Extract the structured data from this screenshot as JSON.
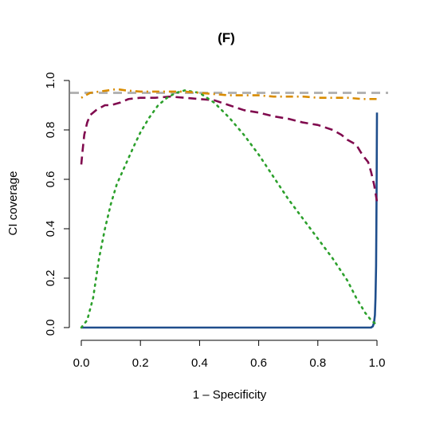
{
  "chart_data": {
    "type": "line",
    "title": "(F)",
    "xlabel": "1 – Specificity",
    "ylabel": "CI coverage",
    "xlim": [
      0,
      1
    ],
    "ylim": [
      0,
      1
    ],
    "xticks": [
      "0.0",
      "0.2",
      "0.4",
      "0.6",
      "0.8",
      "1.0"
    ],
    "yticks": [
      "0.0",
      "0.2",
      "0.4",
      "0.6",
      "0.8",
      "1.0"
    ],
    "grid": false,
    "legend": "none",
    "reference_line": {
      "y": 0.95,
      "style": "dashed",
      "color": "#b3b3b3"
    },
    "series": [
      {
        "color": "#1f4e8c",
        "style": "solid",
        "x": [
          0,
          0.1,
          0.2,
          0.3,
          0.4,
          0.5,
          0.6,
          0.7,
          0.8,
          0.9,
          0.95,
          0.98,
          0.986,
          0.99,
          0.993,
          0.995,
          0.997,
          0.998,
          0.999,
          1.0
        ],
        "y": [
          0.0,
          0.0,
          0.0,
          0.0,
          0.0,
          0.0,
          0.0,
          0.0,
          0.0,
          0.0,
          0.0,
          0.0,
          0.005,
          0.02,
          0.05,
          0.12,
          0.25,
          0.42,
          0.62,
          0.87
        ]
      },
      {
        "color": "#800a4e",
        "style": "dashed",
        "x": [
          0.0,
          0.003,
          0.01,
          0.02,
          0.03,
          0.05,
          0.08,
          0.1,
          0.13,
          0.16,
          0.2,
          0.25,
          0.3,
          0.35,
          0.4,
          0.45,
          0.5,
          0.55,
          0.6,
          0.65,
          0.7,
          0.75,
          0.8,
          0.85,
          0.88,
          0.9,
          0.93,
          0.95,
          0.97,
          0.98,
          0.99,
          1.0
        ],
        "y": [
          0.66,
          0.7,
          0.78,
          0.83,
          0.86,
          0.88,
          0.9,
          0.9,
          0.91,
          0.925,
          0.93,
          0.93,
          0.935,
          0.93,
          0.925,
          0.92,
          0.9,
          0.88,
          0.87,
          0.855,
          0.845,
          0.83,
          0.82,
          0.8,
          0.78,
          0.76,
          0.74,
          0.7,
          0.67,
          0.63,
          0.58,
          0.51
        ]
      },
      {
        "color": "#2ca02c",
        "style": "dotted",
        "x": [
          0.0,
          0.02,
          0.04,
          0.06,
          0.08,
          0.1,
          0.12,
          0.15,
          0.18,
          0.2,
          0.23,
          0.26,
          0.29,
          0.32,
          0.35,
          0.4,
          0.45,
          0.5,
          0.55,
          0.6,
          0.65,
          0.7,
          0.75,
          0.8,
          0.85,
          0.9,
          0.93,
          0.96,
          0.98,
          1.0
        ],
        "y": [
          0.0,
          0.03,
          0.12,
          0.28,
          0.4,
          0.5,
          0.58,
          0.66,
          0.74,
          0.79,
          0.85,
          0.9,
          0.93,
          0.95,
          0.96,
          0.95,
          0.91,
          0.85,
          0.78,
          0.7,
          0.61,
          0.52,
          0.44,
          0.36,
          0.28,
          0.19,
          0.12,
          0.06,
          0.03,
          0.01
        ]
      },
      {
        "color": "#d98c00",
        "style": "dotdash",
        "x": [
          0.0,
          0.03,
          0.06,
          0.09,
          0.12,
          0.15,
          0.2,
          0.25,
          0.3,
          0.35,
          0.4,
          0.45,
          0.5,
          0.55,
          0.6,
          0.65,
          0.7,
          0.75,
          0.8,
          0.85,
          0.9,
          0.95,
          1.0
        ],
        "y": [
          0.93,
          0.95,
          0.955,
          0.96,
          0.965,
          0.96,
          0.955,
          0.955,
          0.955,
          0.955,
          0.95,
          0.945,
          0.94,
          0.94,
          0.94,
          0.935,
          0.935,
          0.935,
          0.93,
          0.93,
          0.93,
          0.925,
          0.925
        ]
      }
    ]
  }
}
